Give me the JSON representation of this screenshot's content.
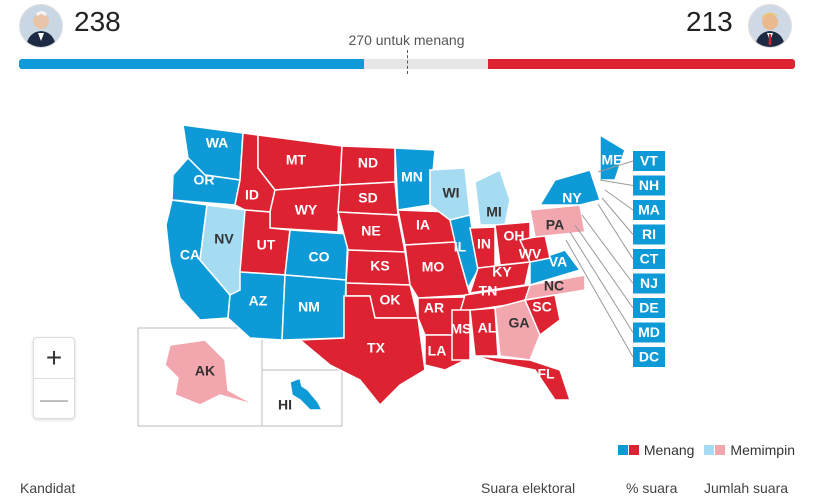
{
  "header": {
    "dem_count": "238",
    "rep_count": "213",
    "threshold_label": "270 untuk menang",
    "dem_share": 0.445,
    "rep_share": 0.395
  },
  "colors": {
    "dem_won": "#0e9ad6",
    "rep_won": "#dd2232",
    "dem_leading": "#a6dcf2",
    "rep_leading": "#f2a7ae"
  },
  "states": [
    {
      "abbr": "WA",
      "status": "dem-won"
    },
    {
      "abbr": "OR",
      "status": "dem-won"
    },
    {
      "abbr": "CA",
      "status": "dem-won"
    },
    {
      "abbr": "NV",
      "status": "dem-leading"
    },
    {
      "abbr": "ID",
      "status": "rep-won"
    },
    {
      "abbr": "MT",
      "status": "rep-won"
    },
    {
      "abbr": "WY",
      "status": "rep-won"
    },
    {
      "abbr": "UT",
      "status": "rep-won"
    },
    {
      "abbr": "AZ",
      "status": "dem-won"
    },
    {
      "abbr": "CO",
      "status": "dem-won"
    },
    {
      "abbr": "NM",
      "status": "dem-won"
    },
    {
      "abbr": "ND",
      "status": "rep-won"
    },
    {
      "abbr": "SD",
      "status": "rep-won"
    },
    {
      "abbr": "NE",
      "status": "rep-won"
    },
    {
      "abbr": "KS",
      "status": "rep-won"
    },
    {
      "abbr": "OK",
      "status": "rep-won"
    },
    {
      "abbr": "TX",
      "status": "rep-won"
    },
    {
      "abbr": "MN",
      "status": "dem-won"
    },
    {
      "abbr": "IA",
      "status": "rep-won"
    },
    {
      "abbr": "MO",
      "status": "rep-won"
    },
    {
      "abbr": "AR",
      "status": "rep-won"
    },
    {
      "abbr": "LA",
      "status": "rep-won"
    },
    {
      "abbr": "WI",
      "status": "dem-leading"
    },
    {
      "abbr": "IL",
      "status": "dem-won"
    },
    {
      "abbr": "MI",
      "status": "dem-leading"
    },
    {
      "abbr": "IN",
      "status": "rep-won"
    },
    {
      "abbr": "OH",
      "status": "rep-won"
    },
    {
      "abbr": "KY",
      "status": "rep-won"
    },
    {
      "abbr": "TN",
      "status": "rep-won"
    },
    {
      "abbr": "MS",
      "status": "rep-won"
    },
    {
      "abbr": "AL",
      "status": "rep-won"
    },
    {
      "abbr": "GA",
      "status": "rep-leading"
    },
    {
      "abbr": "FL",
      "status": "rep-won"
    },
    {
      "abbr": "SC",
      "status": "rep-won"
    },
    {
      "abbr": "NC",
      "status": "rep-leading"
    },
    {
      "abbr": "VA",
      "status": "dem-won"
    },
    {
      "abbr": "WV",
      "status": "rep-won"
    },
    {
      "abbr": "PA",
      "status": "rep-leading"
    },
    {
      "abbr": "NY",
      "status": "dem-won"
    },
    {
      "abbr": "ME",
      "status": "dem-won"
    },
    {
      "abbr": "AK",
      "status": "rep-leading"
    },
    {
      "abbr": "HI",
      "status": "dem-won"
    }
  ],
  "small_states": [
    {
      "abbr": "VT",
      "status": "dem-won"
    },
    {
      "abbr": "NH",
      "status": "dem-won"
    },
    {
      "abbr": "MA",
      "status": "dem-won"
    },
    {
      "abbr": "RI",
      "status": "dem-won"
    },
    {
      "abbr": "CT",
      "status": "dem-won"
    },
    {
      "abbr": "NJ",
      "status": "dem-won"
    },
    {
      "abbr": "DE",
      "status": "dem-won"
    },
    {
      "abbr": "MD",
      "status": "dem-won"
    },
    {
      "abbr": "DC",
      "status": "dem-won"
    }
  ],
  "zoom": {
    "in": "+",
    "out": "—"
  },
  "legend": {
    "won": "Menang",
    "leading": "Memimpin"
  },
  "table_header": {
    "candidate": "Kandidat",
    "electoral": "Suara elektoral",
    "pct": "% suara",
    "votes": "Jumlah suara"
  }
}
